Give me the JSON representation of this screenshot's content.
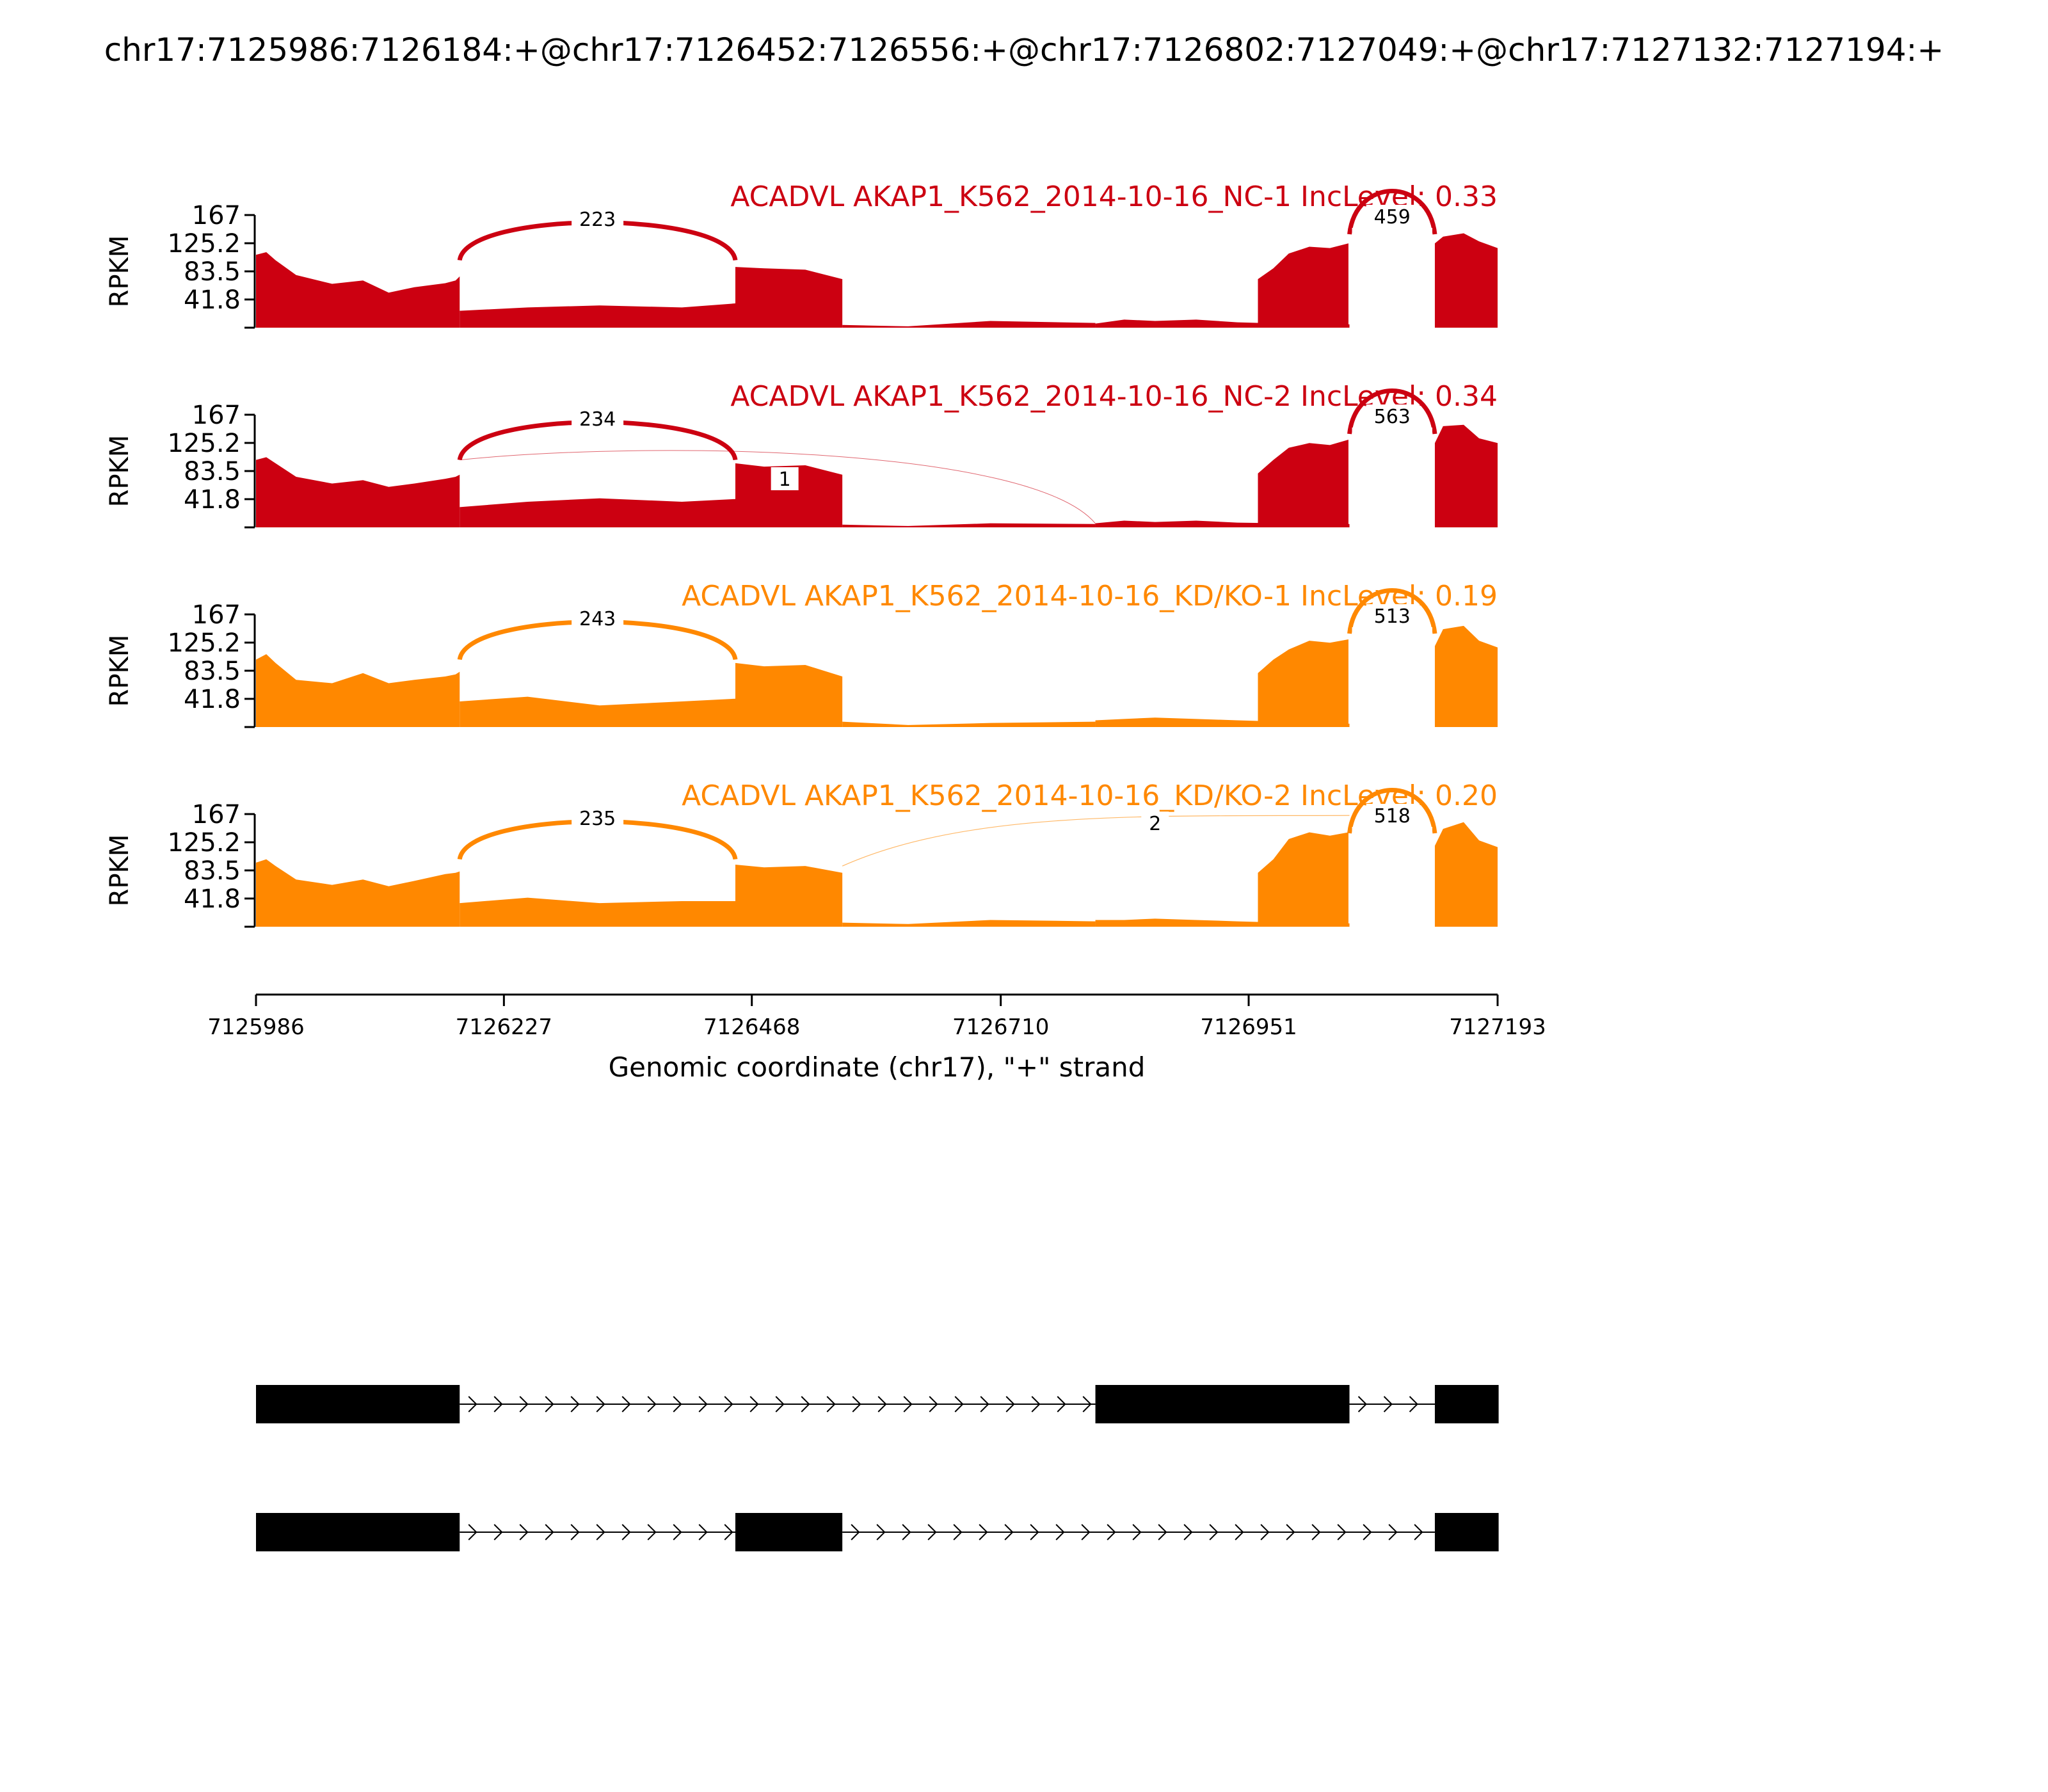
{
  "chart_data": {
    "type": "area",
    "title": "chr17:7125986:7126184:+@chr17:7126452:7126556:+@chr17:7126802:7127049:+@chr17:7127132:7127194:+",
    "xlabel": "Genomic coordinate (chr17), \"+\" strand",
    "ylabel": "RPKM",
    "xlim": [
      7125986,
      7127193
    ],
    "ylim": [
      0,
      167
    ],
    "x_ticks": [
      "7125986",
      "7126227",
      "7126468",
      "7126710",
      "7126951",
      "7127193"
    ],
    "y_ticks": [
      "167",
      "125.2",
      "83.5",
      "41.8"
    ],
    "y_tick_values": [
      167,
      125.2,
      83.5,
      41.8
    ],
    "grid": false,
    "tracks": [
      {
        "title": "ACADVL AKAP1_K562_2014-10-16_NC-1 IncLevel: 0.33",
        "color": "#cc0011",
        "coverage": [
          {
            "x": [
              7125986,
              7125996,
              7126005,
              7126025,
              7126060,
              7126090,
              7126115,
              7126140,
              7126170,
              7126180,
              7126184
            ],
            "y": [
              108,
              112,
              100,
              78,
              65,
              70,
              52,
              60,
              66,
              70,
              76
            ]
          },
          {
            "x": [
              7126184,
              7126250,
              7126320,
              7126400,
              7126452
            ],
            "y": [
              25,
              30,
              33,
              30,
              36
            ]
          },
          {
            "x": [
              7126452,
              7126480,
              7126520,
              7126556
            ],
            "y": [
              90,
              88,
              86,
              72
            ]
          },
          {
            "x": [
              7126556,
              7126620,
              7126700,
              7126802
            ],
            "y": [
              4,
              2,
              10,
              7
            ]
          },
          {
            "x": [
              7126802,
              7126830,
              7126860,
              7126900,
              7126940,
              7126985,
              7127030,
              7127049
            ],
            "y": [
              6,
              12,
              10,
              12,
              8,
              6,
              5,
              5
            ]
          },
          {
            "x": [
              7126960,
              7126975,
              7126990,
              7127010,
              7127030,
              7127048
            ],
            "y": [
              72,
              88,
              110,
              120,
              118,
              125
            ]
          },
          {
            "x": [
              7127132,
              7127140,
              7127160,
              7127175,
              7127193
            ],
            "y": [
              125,
              135,
              140,
              128,
              118
            ]
          }
        ],
        "junctions": [
          {
            "start": 7126184,
            "end": 7126452,
            "count": "223"
          },
          {
            "start": 7127049,
            "end": 7127132,
            "count": "459"
          }
        ]
      },
      {
        "title": "ACADVL AKAP1_K562_2014-10-16_NC-2 IncLevel: 0.34",
        "color": "#cc0011",
        "coverage": [
          {
            "x": [
              7125986,
              7125996,
              7126005,
              7126025,
              7126060,
              7126090,
              7126115,
              7126140,
              7126170,
              7126180,
              7126184
            ],
            "y": [
              100,
              104,
              95,
              75,
              65,
              70,
              60,
              65,
              72,
              75,
              78
            ]
          },
          {
            "x": [
              7126184,
              7126250,
              7126320,
              7126400,
              7126452
            ],
            "y": [
              30,
              38,
              43,
              38,
              42
            ]
          },
          {
            "x": [
              7126452,
              7126480,
              7126520,
              7126556
            ],
            "y": [
              95,
              90,
              92,
              78
            ]
          },
          {
            "x": [
              7126556,
              7126620,
              7126700,
              7126802
            ],
            "y": [
              4,
              2,
              6,
              5
            ]
          },
          {
            "x": [
              7126802,
              7126830,
              7126860,
              7126900,
              7126940,
              7126985,
              7127030,
              7127049
            ],
            "y": [
              6,
              10,
              8,
              10,
              7,
              6,
              5,
              5
            ]
          },
          {
            "x": [
              7126960,
              7126975,
              7126990,
              7127010,
              7127030,
              7127048
            ],
            "y": [
              80,
              100,
              118,
              125,
              122,
              130
            ]
          },
          {
            "x": [
              7127132,
              7127140,
              7127160,
              7127175,
              7127193
            ],
            "y": [
              125,
              150,
              152,
              132,
              125
            ]
          }
        ],
        "junctions": [
          {
            "start": 7126184,
            "end": 7126452,
            "count": "234"
          },
          {
            "start": 7126184,
            "end": 7126802,
            "count": "1"
          },
          {
            "start": 7127049,
            "end": 7127132,
            "count": "563"
          }
        ]
      },
      {
        "title": "ACADVL AKAP1_K562_2014-10-16_KD/KO-1 IncLevel: 0.19",
        "color": "#ff8800",
        "coverage": [
          {
            "x": [
              7125986,
              7125996,
              7126005,
              7126025,
              7126060,
              7126090,
              7126115,
              7126140,
              7126170,
              7126180,
              7126184
            ],
            "y": [
              100,
              108,
              95,
              70,
              65,
              80,
              65,
              70,
              75,
              78,
              82
            ]
          },
          {
            "x": [
              7126184,
              7126250,
              7126320,
              7126400,
              7126452
            ],
            "y": [
              38,
              45,
              32,
              38,
              42
            ]
          },
          {
            "x": [
              7126452,
              7126480,
              7126520,
              7126556
            ],
            "y": [
              95,
              90,
              92,
              75
            ]
          },
          {
            "x": [
              7126556,
              7126620,
              7126700,
              7126802
            ],
            "y": [
              8,
              3,
              6,
              8
            ]
          },
          {
            "x": [
              7126802,
              7126830,
              7126860,
              7126900,
              7126940,
              7126985,
              7127030,
              7127049
            ],
            "y": [
              10,
              12,
              14,
              12,
              10,
              8,
              5,
              5
            ]
          },
          {
            "x": [
              7126960,
              7126975,
              7126990,
              7127010,
              7127030,
              7127048
            ],
            "y": [
              80,
              100,
              115,
              128,
              125,
              130
            ]
          },
          {
            "x": [
              7127132,
              7127140,
              7127160,
              7127175,
              7127193
            ],
            "y": [
              120,
              145,
              150,
              128,
              118
            ]
          }
        ],
        "junctions": [
          {
            "start": 7126184,
            "end": 7126452,
            "count": "243"
          },
          {
            "start": 7127049,
            "end": 7127132,
            "count": "513"
          }
        ]
      },
      {
        "title": "ACADVL AKAP1_K562_2014-10-16_KD/KO-2 IncLevel: 0.20",
        "color": "#ff8800",
        "coverage": [
          {
            "x": [
              7125986,
              7125996,
              7126005,
              7126025,
              7126060,
              7126090,
              7126115,
              7126140,
              7126170,
              7126180,
              7126184
            ],
            "y": [
              95,
              100,
              90,
              70,
              62,
              70,
              60,
              68,
              78,
              80,
              82
            ]
          },
          {
            "x": [
              7126184,
              7126250,
              7126320,
              7126400,
              7126452
            ],
            "y": [
              35,
              43,
              35,
              38,
              38
            ]
          },
          {
            "x": [
              7126452,
              7126480,
              7126520,
              7126556
            ],
            "y": [
              92,
              88,
              90,
              80
            ]
          },
          {
            "x": [
              7126556,
              7126620,
              7126700,
              7126802
            ],
            "y": [
              6,
              4,
              10,
              8
            ]
          },
          {
            "x": [
              7126802,
              7126830,
              7126860,
              7126900,
              7126940,
              7126985,
              7127030,
              7127049
            ],
            "y": [
              10,
              10,
              12,
              10,
              8,
              6,
              5,
              5
            ]
          },
          {
            "x": [
              7126960,
              7126975,
              7126990,
              7127010,
              7127030,
              7127048
            ],
            "y": [
              80,
              100,
              130,
              140,
              135,
              140
            ]
          },
          {
            "x": [
              7127132,
              7127140,
              7127160,
              7127175,
              7127193
            ],
            "y": [
              120,
              145,
              155,
              128,
              118
            ]
          }
        ],
        "junctions": [
          {
            "start": 7126184,
            "end": 7126452,
            "count": "235"
          },
          {
            "start": 7126556,
            "end": 7127049,
            "count": "2"
          },
          {
            "start": 7127049,
            "end": 7127132,
            "count": "518"
          }
        ]
      }
    ],
    "isoforms": [
      {
        "exons": [
          [
            7125986,
            7126184
          ],
          [
            7126802,
            7127049
          ],
          [
            7127132,
            7127194
          ]
        ]
      },
      {
        "exons": [
          [
            7125986,
            7126184
          ],
          [
            7126452,
            7126556
          ],
          [
            7127132,
            7127194
          ]
        ]
      }
    ]
  }
}
